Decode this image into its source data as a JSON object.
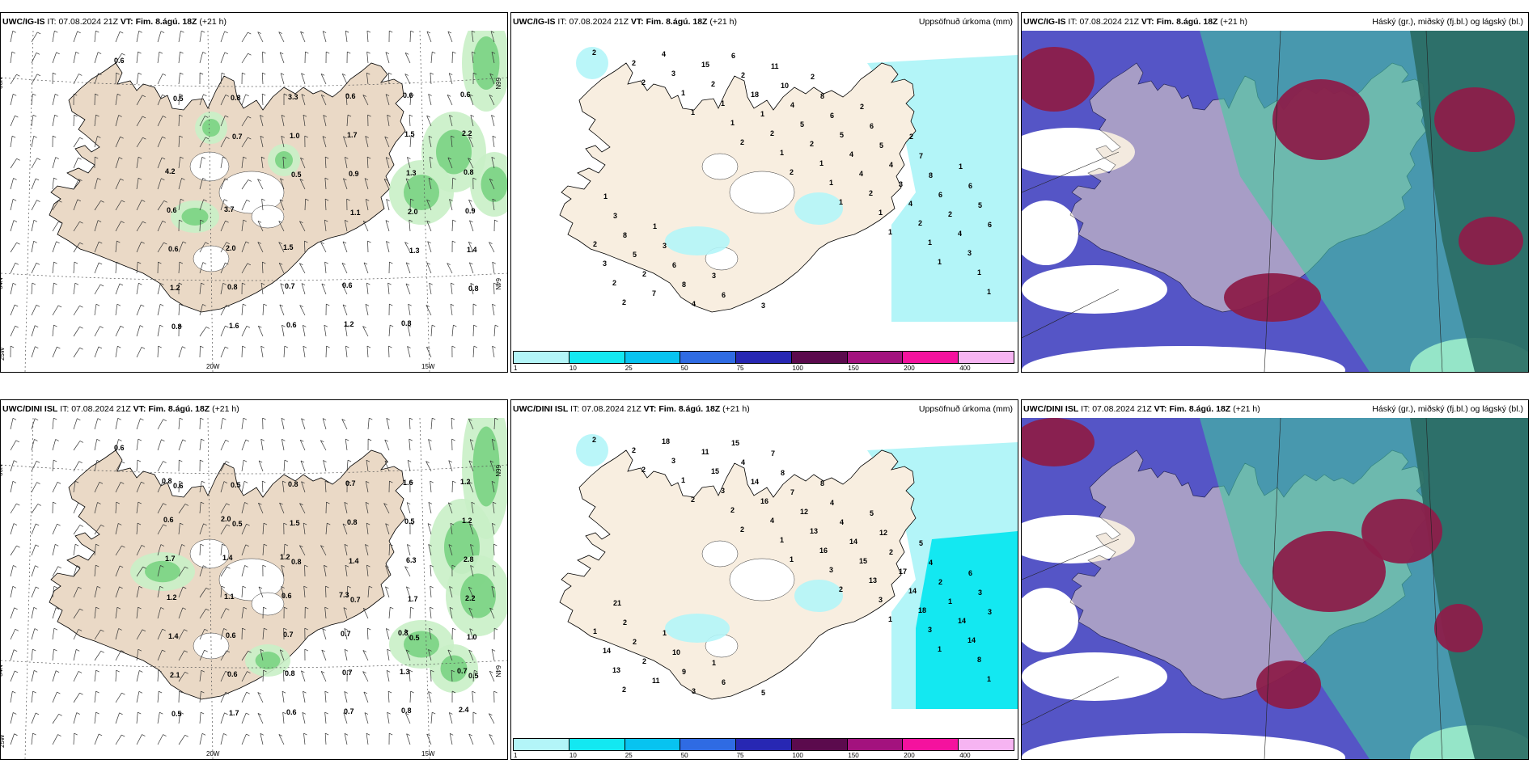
{
  "colors": {
    "land": "#f8eee0",
    "land_beige": "#ead9c6",
    "sea": "#ffffff",
    "green_light": "#c9f0c6",
    "green_mid": "#6fcf79",
    "green_dark": "#1f6b3a",
    "cyan_light": "#b3f5f8",
    "cyan": "#13e8f1",
    "blue_cloud": "#5555c6",
    "maroon_cloud": "#8c1d4a",
    "teal_cloud": "#2a6b63",
    "teal_green": "#3ecf9b",
    "coast": "#000000"
  },
  "colorbar": {
    "colors": [
      "#b3f5f8",
      "#13e8f1",
      "#08c3f0",
      "#2f6be3",
      "#2727b3",
      "#5b0a4d",
      "#a3127e",
      "#f4129e",
      "#f6b4f2"
    ],
    "ticks": [
      "1",
      "10",
      "25",
      "50",
      "75",
      "100",
      "150",
      "200",
      "400"
    ]
  },
  "panels": [
    {
      "model_label": "UWC/IG-IS",
      "it_label": "IT:",
      "it_value": "07.08.2024 21Z",
      "vt_label": "VT:",
      "vt_value": "Fim. 8.ágú. 18Z",
      "lead": "(+21 h)",
      "right_title": "",
      "type": "wind",
      "axis_labels": [
        "66N",
        "66N",
        "64N",
        "64N",
        "25W",
        "20W",
        "15W"
      ],
      "values": [
        "0.6",
        "0.5",
        "0.7",
        "0.5",
        "1.1",
        "1.3",
        "0.8",
        "0.8",
        "0.8",
        "1.0",
        "0.9",
        "2.0",
        "1.4",
        "1.2",
        "1.6",
        "3.3",
        "1.7",
        "1.3",
        "0.9",
        "0.6",
        "0.8",
        "0.6",
        "0.6",
        "1.5",
        "0.8",
        "0.6",
        "2.0",
        "0.7",
        "1.2",
        "0.6",
        "2.2",
        "4.2",
        "3.7",
        "1.5",
        "0.6",
        "0.8",
        "0.6"
      ]
    },
    {
      "model_label": "UWC/IG-IS",
      "it_label": "IT:",
      "it_value": "07.08.2024 21Z",
      "vt_label": "VT:",
      "vt_value": "Fim. 8.ágú. 18Z",
      "lead": "(+21 h)",
      "right_title": "Uppsöfnuð úrkoma (mm)",
      "type": "precip",
      "values": [
        "2",
        "2",
        "1",
        "2",
        "2",
        "1",
        "1",
        "1",
        "1",
        "2",
        "1",
        "1",
        "1",
        "1",
        "1",
        "1",
        "1",
        "2",
        "3",
        "1",
        "2",
        "1",
        "2",
        "2",
        "3",
        "2",
        "4",
        "2",
        "1",
        "2",
        "4",
        "4",
        "4",
        "3",
        "7",
        "15",
        "18",
        "5",
        "4",
        "3",
        "2",
        "2",
        "2",
        "4",
        "2",
        "4",
        "5",
        "4",
        "6",
        "6",
        "5",
        "8",
        "6",
        "10",
        "6",
        "5",
        "8",
        "5",
        "8",
        "6",
        "6",
        "11",
        "8",
        "6",
        "7",
        "6",
        "3",
        "3",
        "3",
        "3",
        "2",
        "2",
        "2",
        "1",
        "1",
        "1"
      ]
    },
    {
      "model_label": "UWC/IG-IS",
      "it_label": "IT:",
      "it_value": "07.08.2024 21Z",
      "vt_label": "VT:",
      "vt_value": "Fim. 8.ágú. 18Z",
      "lead": "(+21 h)",
      "right_title": "Háský (gr.), miðský (fj.bl.) og lágský (bl.)",
      "type": "cloud"
    },
    {
      "model_label": "UWC/DINI ISL",
      "it_label": "IT:",
      "it_value": "07.08.2024 21Z",
      "vt_label": "VT:",
      "vt_value": "Fim. 8.ágú. 18Z",
      "lead": "(+21 h)",
      "right_title": "",
      "type": "wind",
      "axis_labels": [
        "66N",
        "66N",
        "64N",
        "64N",
        "25W",
        "20W",
        "15W"
      ],
      "values": [
        "0.6",
        "0.6",
        "0.5",
        "0.8",
        "0.7",
        "0.5",
        "0.5",
        "0.5",
        "0.5",
        "1.5",
        "1.4",
        "1.7",
        "1.0",
        "2.1",
        "1.7",
        "0.8",
        "0.8",
        "6.3",
        "2.2",
        "1.4",
        "0.6",
        "0.6",
        "0.7",
        "0.5",
        "2.8",
        "1.2",
        "0.6",
        "0.8",
        "0.7",
        "1.6",
        "1.2",
        "1.7",
        "1.1",
        "0.7",
        "0.7",
        "0.8",
        "1.2",
        "0.6",
        "1.4",
        "0.6",
        "0.7",
        "1.3",
        "2.4",
        "0.8",
        "2.0",
        "1.2",
        "7.3",
        "0.8",
        "0.7"
      ]
    },
    {
      "model_label": "UWC/DINI ISL",
      "it_label": "IT:",
      "it_value": "07.08.2024 21Z",
      "vt_label": "VT:",
      "vt_value": "Fim. 8.ágú. 18Z",
      "lead": "(+21 h)",
      "right_title": "Uppsöfnuð úrkoma (mm)",
      "type": "precip",
      "values": [
        "2",
        "2",
        "2",
        "2",
        "1",
        "2",
        "1",
        "1",
        "1",
        "2",
        "1",
        "2",
        "1",
        "3",
        "3",
        "3",
        "8",
        "2",
        "3",
        "3",
        "4",
        "16",
        "13",
        "18",
        "14",
        "13",
        "18",
        "15",
        "16",
        "13",
        "15",
        "14",
        "14",
        "14",
        "11",
        "11",
        "14",
        "12",
        "14",
        "17",
        "1",
        "1",
        "2",
        "3",
        "4",
        "7",
        "4",
        "2",
        "2",
        "3",
        "2",
        "9",
        "15",
        "8",
        "4",
        "12",
        "4",
        "3",
        "2",
        "10",
        "6",
        "7",
        "8",
        "5",
        "5",
        "6",
        "21",
        "1",
        "1",
        "5"
      ]
    },
    {
      "model_label": "UWC/DINI ISL",
      "it_label": "IT:",
      "it_value": "07.08.2024 21Z",
      "vt_label": "VT:",
      "vt_value": "Fim. 8.ágú. 18Z",
      "lead": "(+21 h)",
      "right_title": "Háský (gr.), miðský (fj.bl.) og lágský (bl.)",
      "type": "cloud"
    }
  ]
}
